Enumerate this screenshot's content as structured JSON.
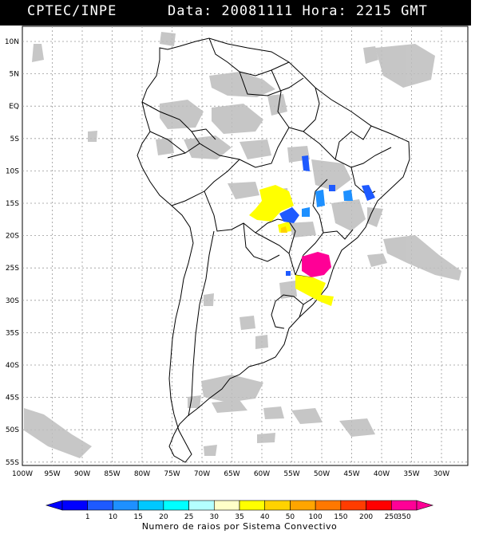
{
  "header": {
    "source": "CPTEC/INPE",
    "info": "Data: 20081111 Hora: 2215 GMT"
  },
  "lat_labels": [
    "10N",
    "5N",
    "EQ",
    "5S",
    "10S",
    "15S",
    "20S",
    "25S",
    "30S",
    "35S",
    "40S",
    "45S",
    "50S",
    "55S"
  ],
  "lon_labels": [
    "100W",
    "95W",
    "90W",
    "85W",
    "80W",
    "75W",
    "70W",
    "65W",
    "60W",
    "55W",
    "50W",
    "45W",
    "40W",
    "35W",
    "30W"
  ],
  "legend": {
    "values": [
      "1",
      "10",
      "15",
      "20",
      "25",
      "30",
      "35",
      "40",
      "50",
      "100",
      "150",
      "200",
      "250",
      "350"
    ],
    "colors": [
      "#0000ff",
      "#1e5aff",
      "#1e90ff",
      "#00c8ff",
      "#00ffff",
      "#b4ffff",
      "#ffffc8",
      "#ffff00",
      "#ffd200",
      "#ffa500",
      "#ff7800",
      "#ff3c00",
      "#ff0000",
      "#ff0096"
    ],
    "caption": "Numero de raios por Sistema Convectivo"
  }
}
